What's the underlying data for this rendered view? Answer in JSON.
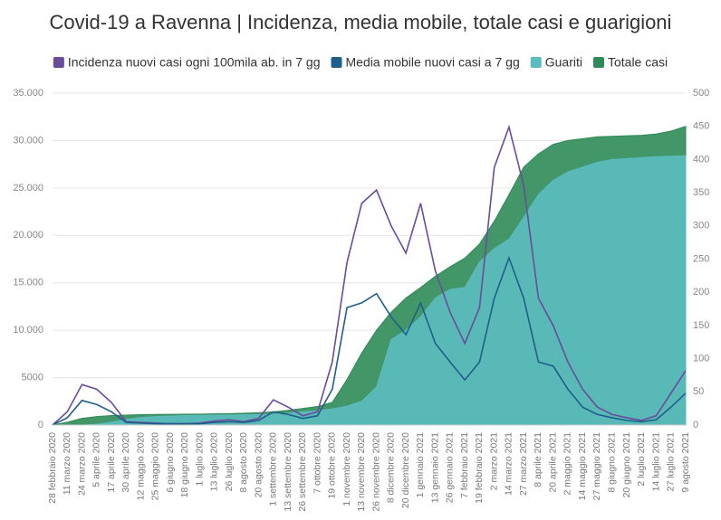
{
  "chart_data": {
    "type": "area-line",
    "title": "Covid-19 a Ravenna | Incidenza, media mobile, totale casi e guarigioni",
    "categories": [
      "28 febbraio 2020",
      "11 marzo 2020",
      "24 marzo 2020",
      "5 aprile 2020",
      "17 aprile 2020",
      "30 aprile 2020",
      "12 maggio 2020",
      "25 maggio 2020",
      "6 giugno 2020",
      "18 giugno 2020",
      "1 luglio 2020",
      "13 luglio 2020",
      "26 luglio 2020",
      "8 agosto 2020",
      "20 agosto 2020",
      "1 settembre 2020",
      "13 settembre 2020",
      "26 settembre 2020",
      "7 ottobre 2020",
      "19 ottobre 2020",
      "1 novembre 2020",
      "13 novembre 2020",
      "26 novembre 2020",
      "8 dicembre 2020",
      "20 dicembre 2020",
      "1 gennaio 2021",
      "13 gennaio 2021",
      "26 gennaio 2021",
      "7 febbraio 2021",
      "19 febbraio 2021",
      "2 marzo 2021",
      "14 marzo 2021",
      "27 marzo 2021",
      "8 aprile 2021",
      "20 aprile 2021",
      "2 maggio 2021",
      "14 maggio 2021",
      "27 maggio 2021",
      "8 giugno 2021",
      "20 giugno 2021",
      "2 luglio 2021",
      "14 luglio 2021",
      "27 luglio 2021",
      "9 agosto 2021"
    ],
    "series": [
      {
        "name": "Incidenza nuovi casi ogni 100mila ab. in 7 gg",
        "color": "#6a4c9c",
        "kind": "line",
        "axis": "y2",
        "values": [
          0,
          20,
          61,
          54,
          34,
          5,
          4,
          3,
          2,
          2,
          3,
          6,
          8,
          5,
          10,
          38,
          27,
          14,
          20,
          95,
          245,
          334,
          354,
          300,
          259,
          334,
          232,
          170,
          123,
          177,
          388,
          449,
          361,
          191,
          150,
          95,
          54,
          27,
          16,
          11,
          7,
          14,
          48,
          82
        ]
      },
      {
        "name": "Media mobile nuovi casi a 7 gg",
        "color": "#1f5f8b",
        "kind": "line",
        "axis": "y2",
        "values": [
          0,
          11,
          37,
          31,
          20,
          4,
          3,
          2,
          2,
          2,
          2,
          4,
          5,
          4,
          7,
          20,
          16,
          10,
          14,
          54,
          177,
          184,
          198,
          163,
          136,
          184,
          123,
          95,
          68,
          95,
          191,
          252,
          191,
          95,
          89,
          54,
          27,
          16,
          11,
          7,
          5,
          8,
          27,
          48
        ]
      },
      {
        "name": "Guariti",
        "color": "#5bbcbf",
        "kind": "area",
        "values": [
          0,
          0,
          0,
          100,
          300,
          600,
          800,
          900,
          950,
          1000,
          1020,
          1040,
          1060,
          1080,
          1100,
          1150,
          1250,
          1400,
          1500,
          1700,
          2000,
          2500,
          4000,
          9000,
          10000,
          11400,
          13400,
          14300,
          14500,
          17200,
          18600,
          19600,
          21900,
          24300,
          25800,
          26700,
          27200,
          27700,
          28000,
          28100,
          28200,
          28300,
          28350,
          28400
        ]
      },
      {
        "name": "Totale casi",
        "color": "#2e8b57",
        "kind": "area",
        "values": [
          0,
          300,
          700,
          900,
          1000,
          1050,
          1100,
          1120,
          1130,
          1140,
          1160,
          1180,
          1200,
          1250,
          1300,
          1400,
          1550,
          1750,
          1950,
          2400,
          4800,
          7600,
          10000,
          11900,
          13400,
          14500,
          15700,
          16700,
          17600,
          19100,
          21500,
          24300,
          27200,
          28600,
          29600,
          30000,
          30200,
          30400,
          30450,
          30500,
          30550,
          30700,
          31000,
          31500
        ]
      }
    ],
    "ylim": [
      0,
      35000
    ],
    "yticks": [
      0,
      5000,
      {
        "value": 10000,
        "label": "10.000"
      },
      {
        "value": 15000,
        "label": "15.000"
      },
      {
        "value": 20000,
        "label": "20.000"
      },
      {
        "value": 25000,
        "label": "25.000"
      },
      {
        "value": 30000,
        "label": "30.000"
      },
      {
        "value": 35000,
        "label": "35.000"
      }
    ],
    "y2lim": [
      0,
      500
    ],
    "y2ticks": [
      0,
      50,
      100,
      150,
      200,
      250,
      300,
      350,
      400,
      450,
      500
    ],
    "grid": true,
    "legend": "top"
  }
}
